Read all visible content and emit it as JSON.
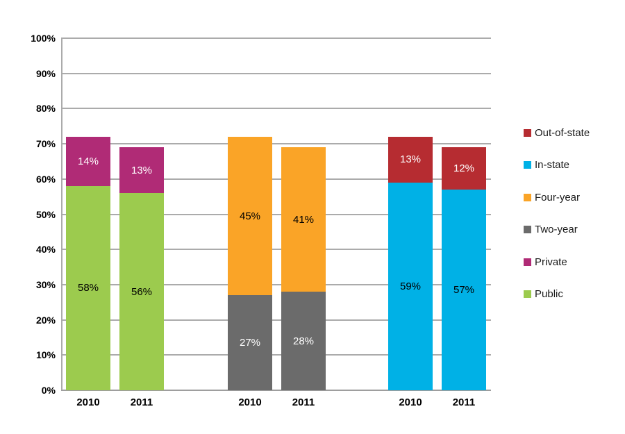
{
  "chart_data": {
    "type": "bar",
    "stacked": true,
    "title": "",
    "xlabel": "",
    "ylabel": "",
    "ylim": [
      0,
      100
    ],
    "ytick_interval": 10,
    "ytick_labels": [
      "0%",
      "10%",
      "20%",
      "30%",
      "40%",
      "50%",
      "60%",
      "70%",
      "80%",
      "90%",
      "100%"
    ],
    "grid": true,
    "series": [
      {
        "name": "Public",
        "color": "#9ccb4e",
        "label_color": "#000000"
      },
      {
        "name": "Private",
        "color": "#b02b76",
        "label_color": "#ffffff"
      },
      {
        "name": "Two-year",
        "color": "#6b6b6b",
        "label_color": "#ffffff"
      },
      {
        "name": "Four-year",
        "color": "#faa427",
        "label_color": "#000000"
      },
      {
        "name": "In-state",
        "color": "#00b1e6",
        "label_color": "#000000"
      },
      {
        "name": "Out-of-state",
        "color": "#b62c31",
        "label_color": "#ffffff"
      }
    ],
    "bars": [
      {
        "category": "2010",
        "group": 0,
        "segments": [
          {
            "series": "Public",
            "value": 58,
            "label": "58%"
          },
          {
            "series": "Private",
            "value": 14,
            "label": "14%"
          }
        ]
      },
      {
        "category": "2011",
        "group": 0,
        "segments": [
          {
            "series": "Public",
            "value": 56,
            "label": "56%"
          },
          {
            "series": "Private",
            "value": 13,
            "label": "13%"
          }
        ]
      },
      {
        "category": "2010",
        "group": 1,
        "segments": [
          {
            "series": "Two-year",
            "value": 27,
            "label": "27%"
          },
          {
            "series": "Four-year",
            "value": 45,
            "label": "45%"
          }
        ]
      },
      {
        "category": "2011",
        "group": 1,
        "segments": [
          {
            "series": "Two-year",
            "value": 28,
            "label": "28%"
          },
          {
            "series": "Four-year",
            "value": 41,
            "label": "41%"
          }
        ]
      },
      {
        "category": "2010",
        "group": 2,
        "segments": [
          {
            "series": "In-state",
            "value": 59,
            "label": "59%"
          },
          {
            "series": "Out-of-state",
            "value": 13,
            "label": "13%"
          }
        ]
      },
      {
        "category": "2011",
        "group": 2,
        "segments": [
          {
            "series": "In-state",
            "value": 57,
            "label": "57%"
          },
          {
            "series": "Out-of-state",
            "value": 12,
            "label": "12%"
          }
        ]
      }
    ],
    "legend": {
      "position": "right",
      "entries": [
        "Out-of-state",
        "In-state",
        "Four-year",
        "Two-year",
        "Private",
        "Public"
      ]
    }
  }
}
